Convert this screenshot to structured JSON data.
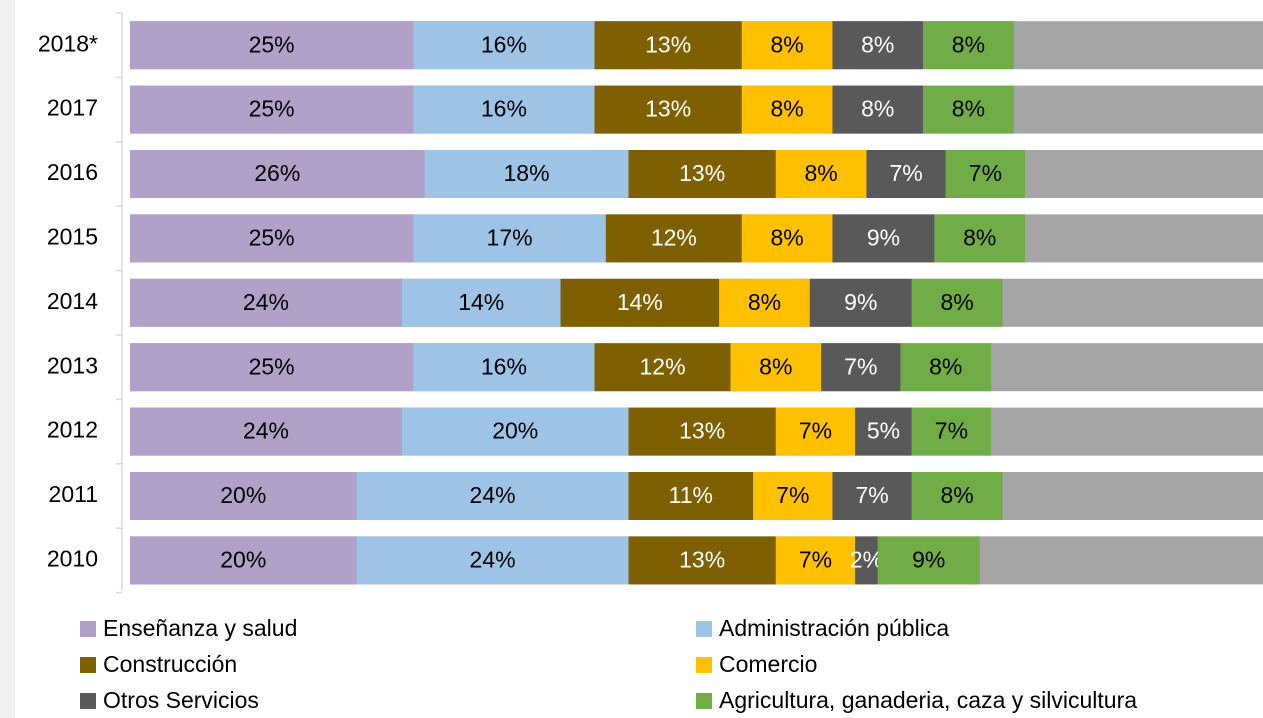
{
  "chart_data": {
    "type": "stacked_barh",
    "categories": [
      "2018*",
      "2017",
      "2016",
      "2015",
      "2014",
      "2013",
      "2012",
      "2011",
      "2010"
    ],
    "xlim": [
      0,
      100
    ],
    "bar_track_color": "#a5a5a5",
    "series": [
      {
        "name": "Enseñanza y salud",
        "color": "#b1a0c7",
        "label_color": "#000000",
        "values": [
          25,
          25,
          26,
          25,
          24,
          25,
          24,
          20,
          20
        ],
        "value_labels": [
          "25%",
          "25%",
          "26%",
          "25%",
          "24%",
          "25%",
          "24%",
          "20%",
          "20%"
        ]
      },
      {
        "name": "Administración pública",
        "color": "#9dc3e6",
        "label_color": "#000000",
        "values": [
          16,
          16,
          18,
          17,
          14,
          16,
          20,
          24,
          24
        ],
        "value_labels": [
          "16%",
          "16%",
          "18%",
          "17%",
          "14%",
          "16%",
          "20%",
          "24%",
          "24%"
        ]
      },
      {
        "name": "Construcción",
        "color": "#7f6000",
        "label_color": "#ffffff",
        "values": [
          13,
          13,
          13,
          12,
          14,
          12,
          13,
          11,
          13
        ],
        "value_labels": [
          "13%",
          "13%",
          "13%",
          "12%",
          "14%",
          "12%",
          "13%",
          "11%",
          "13%"
        ]
      },
      {
        "name": "Comercio",
        "color": "#ffc000",
        "label_color": "#000000",
        "values": [
          8,
          8,
          8,
          8,
          8,
          8,
          7,
          7,
          7
        ],
        "value_labels": [
          "8%",
          "8%",
          "8%",
          "8%",
          "8%",
          "8%",
          "7%",
          "7%",
          "7%"
        ]
      },
      {
        "name": "Otros Servicios",
        "color": "#595959",
        "label_color": "#ffffff",
        "values": [
          8,
          8,
          7,
          9,
          9,
          7,
          5,
          7,
          2
        ],
        "value_labels": [
          "8%",
          "8%",
          "7%",
          "9%",
          "9%",
          "7%",
          "5%",
          "7%",
          "2%"
        ]
      },
      {
        "name": "Agricultura, ganaderia, caza y silvicultura",
        "color": "#70ad47",
        "label_color": "#000000",
        "values": [
          8,
          8,
          7,
          8,
          8,
          8,
          7,
          8,
          9
        ],
        "value_labels": [
          "8%",
          "8%",
          "7%",
          "8%",
          "8%",
          "8%",
          "7%",
          "8%",
          "9%"
        ]
      }
    ]
  }
}
